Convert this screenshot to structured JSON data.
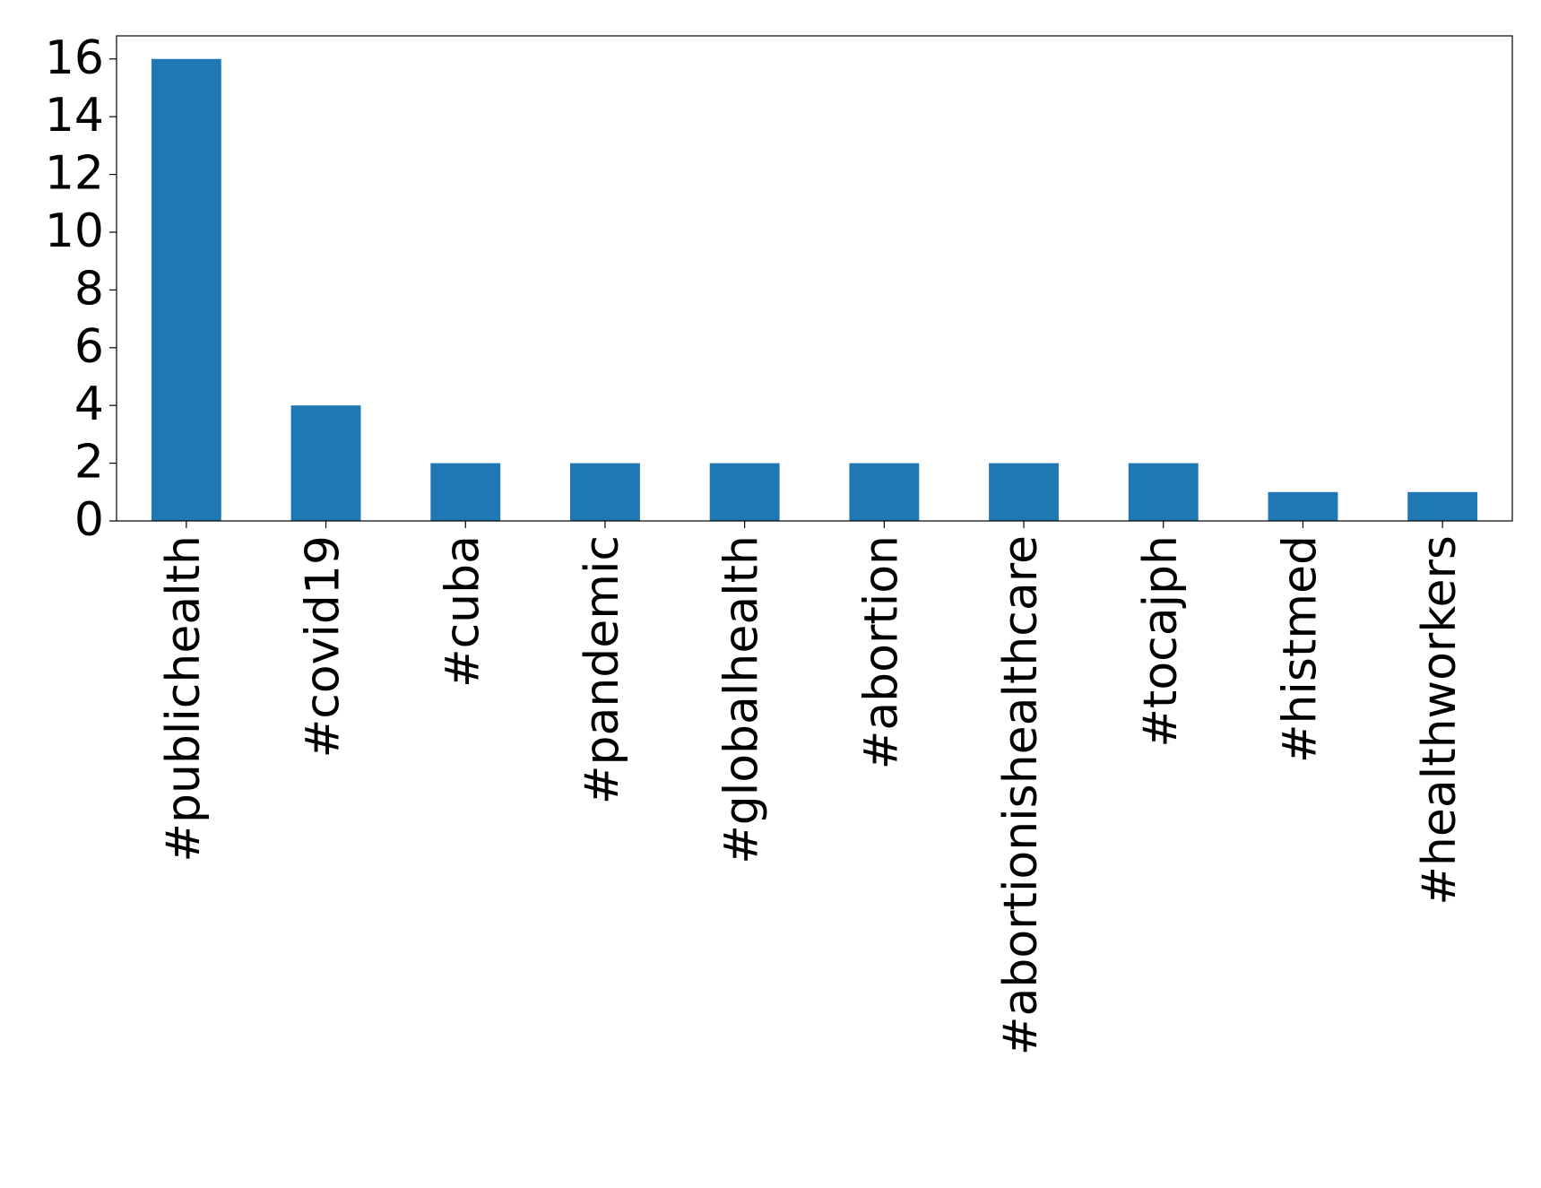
{
  "chart_data": {
    "type": "bar",
    "categories": [
      "#publichealth",
      "#covid19",
      "#cuba",
      "#pandemic",
      "#globalhealth",
      "#abortion",
      "#abortionishealthcare",
      "#tocajph",
      "#histmed",
      "#healthworkers"
    ],
    "values": [
      16,
      4,
      2,
      2,
      2,
      2,
      2,
      2,
      1,
      1
    ],
    "color": "#1f77b4",
    "ylim": [
      0,
      16.8
    ],
    "yticks": [
      0,
      2,
      4,
      6,
      8,
      10,
      12,
      14,
      16
    ],
    "grid": false
  }
}
